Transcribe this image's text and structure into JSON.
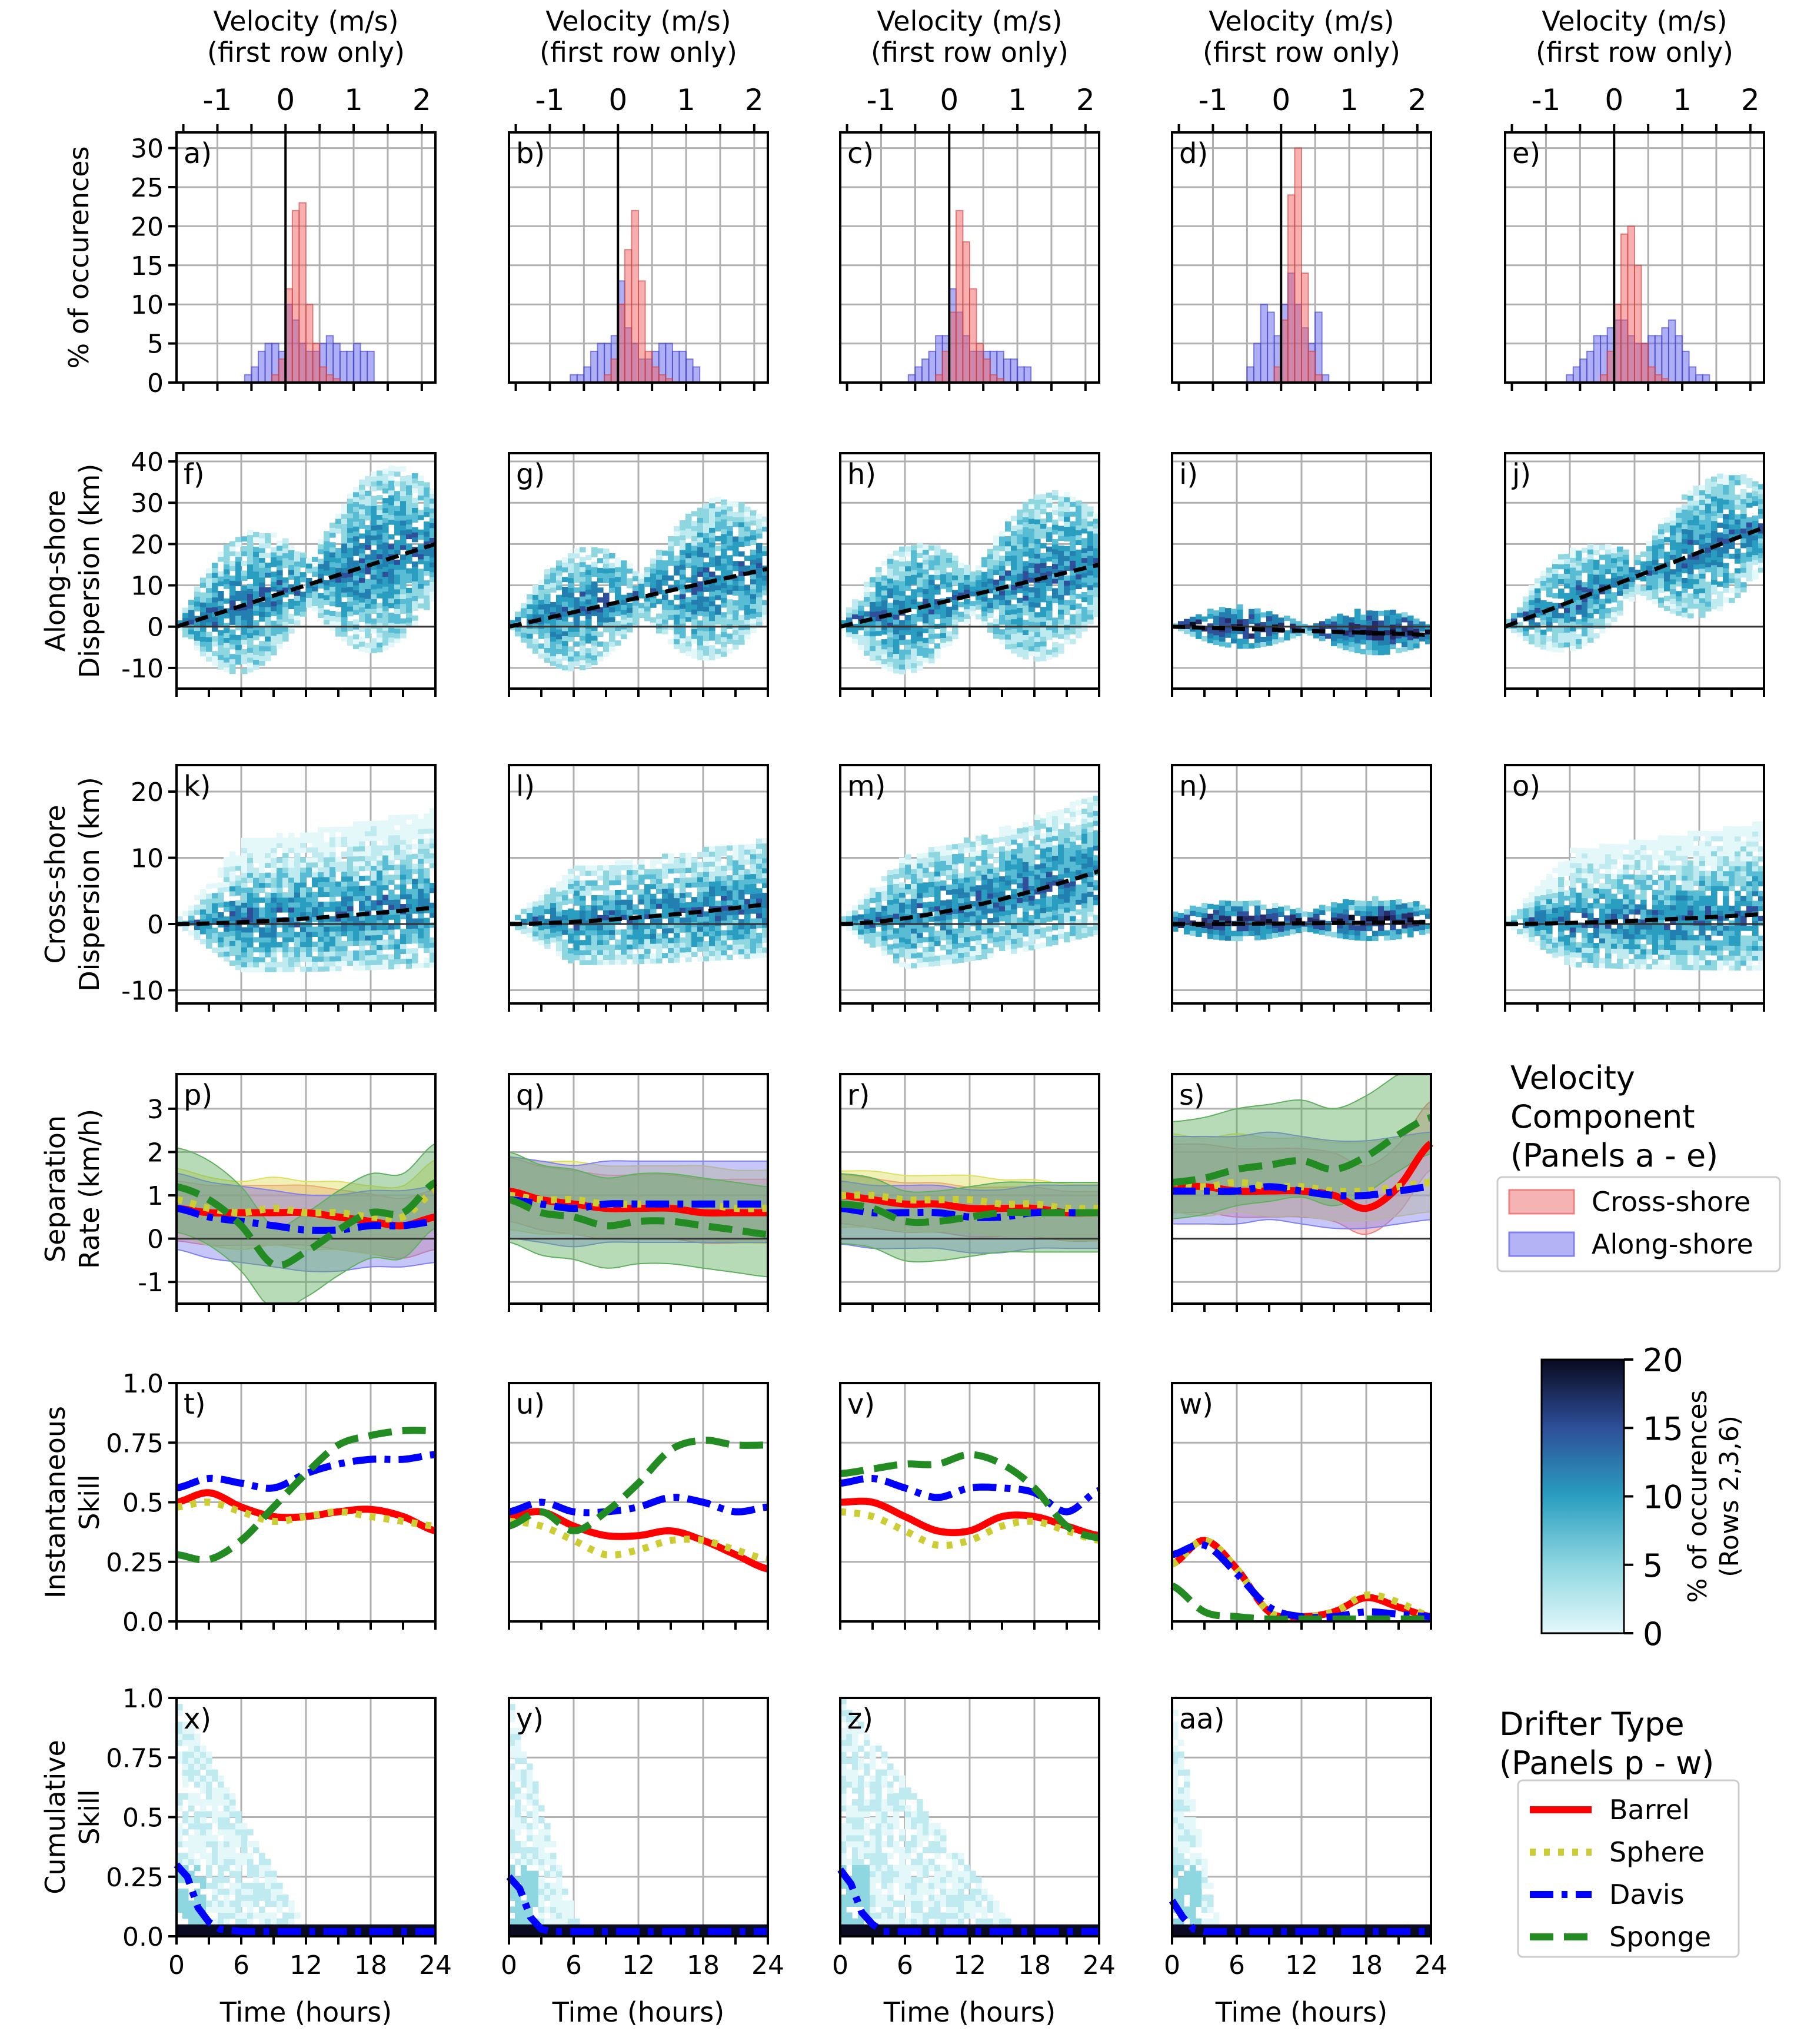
{
  "chart_data": {
    "type": "multi_panel",
    "top_axis": {
      "title_line1": "Velocity (m/s)",
      "title_line2": "(first row only)",
      "range": [
        -1.6,
        2.2
      ],
      "ticks": [
        "-1",
        "0",
        "1",
        "2"
      ]
    },
    "time_axis": {
      "label": "Time (hours)",
      "range": [
        0,
        24
      ],
      "ticks": [
        "0",
        "6",
        "12",
        "18",
        "24"
      ]
    },
    "rows": [
      {
        "ylabel": [
          "% of occurences"
        ],
        "ylim": [
          0,
          32
        ],
        "ticks": [
          "0",
          "5",
          "10",
          "15",
          "20",
          "25",
          "30"
        ],
        "tickvals": [
          0,
          5,
          10,
          15,
          20,
          25,
          30
        ],
        "panels": [
          "a)",
          "b)",
          "c)",
          "d)",
          "e)"
        ]
      },
      {
        "ylabel": [
          "Along-shore",
          "Dispersion (km)"
        ],
        "ylim": [
          -15,
          42
        ],
        "ticks": [
          "-10",
          "0",
          "10",
          "20",
          "30",
          "40"
        ],
        "tickvals": [
          -10,
          0,
          10,
          20,
          30,
          40
        ],
        "panels": [
          "f)",
          "g)",
          "h)",
          "i)",
          "j)"
        ],
        "trend_end": [
          20,
          14,
          15,
          -2,
          24
        ]
      },
      {
        "ylabel": [
          "Cross-shore",
          "Dispersion (km)"
        ],
        "ylim": [
          -12,
          24
        ],
        "ticks": [
          "-10",
          "0",
          "10",
          "20"
        ],
        "tickvals": [
          -10,
          0,
          10,
          20
        ],
        "panels": [
          "k)",
          "l)",
          "m)",
          "n)",
          "o)"
        ],
        "trend_end": [
          2.5,
          3,
          8,
          0.3,
          1.5
        ]
      },
      {
        "ylabel": [
          "Separation",
          "Rate (km/h)"
        ],
        "ylim": [
          -1.5,
          3.8
        ],
        "ticks": [
          "-1",
          "0",
          "1",
          "2",
          "3"
        ],
        "tickvals": [
          -1,
          0,
          1,
          2,
          3
        ],
        "panels": [
          "p)",
          "q)",
          "r)",
          "s)"
        ]
      },
      {
        "ylabel": [
          "Instantaneous",
          "Skill"
        ],
        "ylim": [
          0,
          1
        ],
        "ticks": [
          "0.0",
          "0.25",
          "0.5",
          "0.75",
          "1.0"
        ],
        "tickvals": [
          0,
          0.25,
          0.5,
          0.75,
          1.0
        ],
        "panels": [
          "t)",
          "u)",
          "v)",
          "w)"
        ]
      },
      {
        "ylabel": [
          "Cumulative",
          "Skill"
        ],
        "ylim": [
          0,
          1
        ],
        "ticks": [
          "0.0",
          "0.25",
          "0.5",
          "0.75",
          "1.0"
        ],
        "tickvals": [
          0,
          0.25,
          0.5,
          0.75,
          1.0
        ],
        "panels": [
          "x)",
          "y)",
          "z)",
          "aa)"
        ]
      }
    ],
    "histograms": {
      "bin_edges": [
        -1.0,
        -0.9,
        -0.8,
        -0.7,
        -0.6,
        -0.5,
        -0.4,
        -0.3,
        -0.2,
        -0.1,
        0.0,
        0.1,
        0.2,
        0.3,
        0.4,
        0.5,
        0.6,
        0.7,
        0.8,
        0.9,
        1.0,
        1.1,
        1.2,
        1.3,
        1.4,
        1.5,
        1.6
      ],
      "cross_shore": [
        [
          0,
          0,
          0,
          0,
          0,
          0,
          0,
          0,
          1,
          3,
          12,
          22,
          23,
          10,
          5,
          2,
          1,
          0.5,
          0,
          0,
          0,
          0,
          0,
          0,
          0,
          0
        ],
        [
          0,
          0,
          0,
          0,
          0,
          0,
          0,
          0,
          1,
          3,
          10,
          17,
          22,
          13,
          4,
          2,
          1,
          0.5,
          0,
          0,
          0,
          0,
          0,
          0,
          0,
          0
        ],
        [
          0,
          0,
          0,
          0,
          0,
          0,
          0,
          0,
          1,
          4,
          9,
          22,
          18,
          12,
          5,
          3,
          1,
          0.5,
          0,
          0,
          0,
          0,
          0,
          0,
          0,
          0
        ],
        [
          0,
          0,
          0,
          0,
          0,
          0,
          0,
          0,
          0,
          2,
          8,
          24,
          30,
          14,
          4,
          1,
          0,
          0,
          0,
          0,
          0,
          0,
          0,
          0,
          0,
          0
        ],
        [
          0,
          0,
          0,
          0,
          0,
          0,
          0,
          0,
          1,
          4,
          10,
          19,
          20,
          15,
          5,
          2,
          1,
          0.5,
          0,
          0,
          0,
          0,
          0,
          0,
          0,
          0
        ]
      ],
      "along_shore": [
        [
          0,
          0,
          0,
          0,
          1,
          2,
          4,
          5,
          5,
          4,
          10,
          8,
          5,
          4,
          4,
          5,
          6,
          5,
          4,
          4,
          5,
          4,
          4,
          0,
          0,
          0
        ],
        [
          0,
          0,
          0,
          1,
          1,
          2,
          4,
          5,
          5,
          6,
          13,
          7,
          5,
          3,
          3,
          4,
          5,
          5,
          4,
          4,
          3,
          2,
          0,
          0,
          0,
          0
        ],
        [
          0,
          0,
          0,
          0,
          1,
          2,
          3,
          4,
          6,
          6,
          12,
          9,
          6,
          4,
          4,
          4,
          4,
          4,
          3,
          3,
          2,
          2,
          0,
          0,
          0,
          0
        ],
        [
          0,
          0,
          0,
          0,
          0,
          2,
          5,
          10,
          9,
          6,
          10,
          14,
          10,
          7,
          5,
          9,
          1,
          0,
          0,
          0,
          0,
          0,
          0,
          0,
          0,
          0
        ],
        [
          0,
          0,
          0,
          1,
          2,
          3,
          4,
          6,
          6,
          7,
          8,
          8,
          6,
          5,
          5,
          6,
          6,
          7,
          8,
          6,
          4,
          2,
          1,
          1,
          0,
          0
        ]
      ]
    },
    "legend_velocity": {
      "title": [
        "Velocity",
        "Component",
        "(Panels a - e)"
      ],
      "entries": [
        {
          "label": "Cross-shore",
          "color": "#f08080"
        },
        {
          "label": "Along-shore",
          "color": "#8080f0"
        }
      ]
    },
    "legend_drifter": {
      "title": [
        "Drifter Type",
        "(Panels p - w)"
      ],
      "entries": [
        {
          "label": "Barrel",
          "color": "#ff0000",
          "style": "solid"
        },
        {
          "label": "Sphere",
          "color": "#cccc33",
          "style": "dotted"
        },
        {
          "label": "Davis",
          "color": "#0000ff",
          "style": "dashdot"
        },
        {
          "label": "Sponge",
          "color": "#228b22",
          "style": "dashed"
        }
      ]
    },
    "colorbar": {
      "label": [
        "% of occurences",
        "(Rows 2,3,6)"
      ],
      "range": [
        0,
        20
      ],
      "ticks": [
        "0",
        "5",
        "10",
        "15",
        "20"
      ]
    },
    "separation_rate": {
      "time": [
        0,
        3,
        6,
        9,
        12,
        15,
        18,
        21,
        24
      ],
      "Barrel": [
        [
          0.7,
          0.6,
          0.6,
          0.6,
          0.6,
          0.5,
          0.4,
          0.3,
          0.5
        ],
        [
          1.1,
          0.9,
          0.8,
          0.7,
          0.7,
          0.7,
          0.6,
          0.6,
          0.6
        ],
        [
          1.0,
          0.9,
          0.8,
          0.8,
          0.7,
          0.7,
          0.7,
          0.6,
          0.6
        ],
        [
          1.2,
          1.2,
          1.1,
          1.1,
          1.1,
          1.0,
          0.7,
          1.2,
          2.2
        ]
      ],
      "Sphere": [
        [
          0.9,
          0.7,
          0.6,
          0.7,
          0.6,
          0.6,
          0.5,
          0.5,
          1.1
        ],
        [
          1.0,
          0.9,
          0.9,
          0.8,
          0.8,
          0.8,
          0.8,
          0.7,
          0.7
        ],
        [
          1.0,
          1.0,
          0.9,
          0.9,
          0.9,
          0.8,
          0.8,
          0.7,
          0.7
        ],
        [
          1.3,
          1.2,
          1.3,
          1.2,
          1.2,
          1.1,
          1.1,
          1.2,
          1.3
        ]
      ],
      "Davis": [
        [
          0.7,
          0.5,
          0.4,
          0.3,
          0.2,
          0.2,
          0.3,
          0.3,
          0.4
        ],
        [
          0.9,
          0.8,
          0.7,
          0.8,
          0.8,
          0.8,
          0.8,
          0.8,
          0.8
        ],
        [
          0.7,
          0.6,
          0.6,
          0.6,
          0.5,
          0.5,
          0.6,
          0.6,
          0.6
        ],
        [
          1.1,
          1.1,
          1.1,
          1.2,
          1.1,
          1.0,
          1.0,
          1.1,
          1.2
        ]
      ],
      "Sponge": [
        [
          1.2,
          0.9,
          0.3,
          -0.6,
          -0.3,
          0.2,
          0.6,
          0.6,
          1.3
        ],
        [
          0.9,
          0.6,
          0.5,
          0.3,
          0.4,
          0.4,
          0.3,
          0.2,
          0.1
        ],
        [
          0.8,
          0.7,
          0.4,
          0.4,
          0.5,
          0.6,
          0.6,
          0.6,
          0.6
        ],
        [
          1.3,
          1.4,
          1.6,
          1.7,
          1.8,
          1.6,
          1.9,
          2.4,
          2.8
        ]
      ],
      "band_low": [
        -0.5,
        -0.4,
        -0.3,
        -0.2
      ],
      "band_high": [
        1.9,
        2.1,
        1.7,
        2.4
      ]
    },
    "instantaneous_skill": {
      "time": [
        0,
        3,
        6,
        9,
        12,
        15,
        18,
        21,
        24
      ],
      "Barrel": [
        [
          0.5,
          0.54,
          0.48,
          0.44,
          0.44,
          0.46,
          0.47,
          0.44,
          0.38
        ],
        [
          0.44,
          0.46,
          0.4,
          0.36,
          0.36,
          0.38,
          0.34,
          0.28,
          0.22
        ],
        [
          0.5,
          0.5,
          0.44,
          0.38,
          0.38,
          0.44,
          0.44,
          0.4,
          0.36
        ],
        [
          0.24,
          0.34,
          0.22,
          0.04,
          0.02,
          0.04,
          0.1,
          0.06,
          0.02
        ]
      ],
      "Sphere": [
        [
          0.48,
          0.5,
          0.46,
          0.42,
          0.44,
          0.46,
          0.44,
          0.42,
          0.4
        ],
        [
          0.42,
          0.4,
          0.34,
          0.28,
          0.3,
          0.34,
          0.34,
          0.3,
          0.26
        ],
        [
          0.46,
          0.44,
          0.38,
          0.32,
          0.34,
          0.4,
          0.42,
          0.38,
          0.34
        ],
        [
          0.24,
          0.34,
          0.22,
          0.04,
          0.02,
          0.04,
          0.11,
          0.08,
          0.02
        ]
      ],
      "Davis": [
        [
          0.56,
          0.6,
          0.58,
          0.56,
          0.62,
          0.66,
          0.68,
          0.68,
          0.7
        ],
        [
          0.46,
          0.5,
          0.46,
          0.46,
          0.48,
          0.52,
          0.5,
          0.46,
          0.48
        ],
        [
          0.58,
          0.6,
          0.56,
          0.52,
          0.56,
          0.56,
          0.54,
          0.46,
          0.55
        ],
        [
          0.28,
          0.32,
          0.2,
          0.06,
          0.02,
          0.02,
          0.04,
          0.03,
          0.02
        ]
      ],
      "Sponge": [
        [
          0.28,
          0.26,
          0.34,
          0.48,
          0.62,
          0.74,
          0.78,
          0.8,
          0.8
        ],
        [
          0.4,
          0.46,
          0.38,
          0.46,
          0.58,
          0.72,
          0.76,
          0.74,
          0.74
        ],
        [
          0.62,
          0.64,
          0.66,
          0.66,
          0.7,
          0.66,
          0.56,
          0.4,
          0.35
        ],
        [
          0.15,
          0.04,
          0.02,
          0.01,
          0.01,
          0.01,
          0.01,
          0.01,
          0.01
        ]
      ]
    },
    "cumulative_skill_davis": {
      "time": [
        0,
        1,
        2,
        3,
        4,
        6,
        12,
        24
      ],
      "values": [
        [
          0.3,
          0.25,
          0.12,
          0.06,
          0.03,
          0.02,
          0.02,
          0.02
        ],
        [
          0.25,
          0.2,
          0.08,
          0.03,
          0.02,
          0.02,
          0.02,
          0.02
        ],
        [
          0.28,
          0.22,
          0.1,
          0.05,
          0.02,
          0.02,
          0.02,
          0.02
        ],
        [
          0.15,
          0.08,
          0.03,
          0.02,
          0.02,
          0.02,
          0.02,
          0.02
        ]
      ]
    }
  }
}
